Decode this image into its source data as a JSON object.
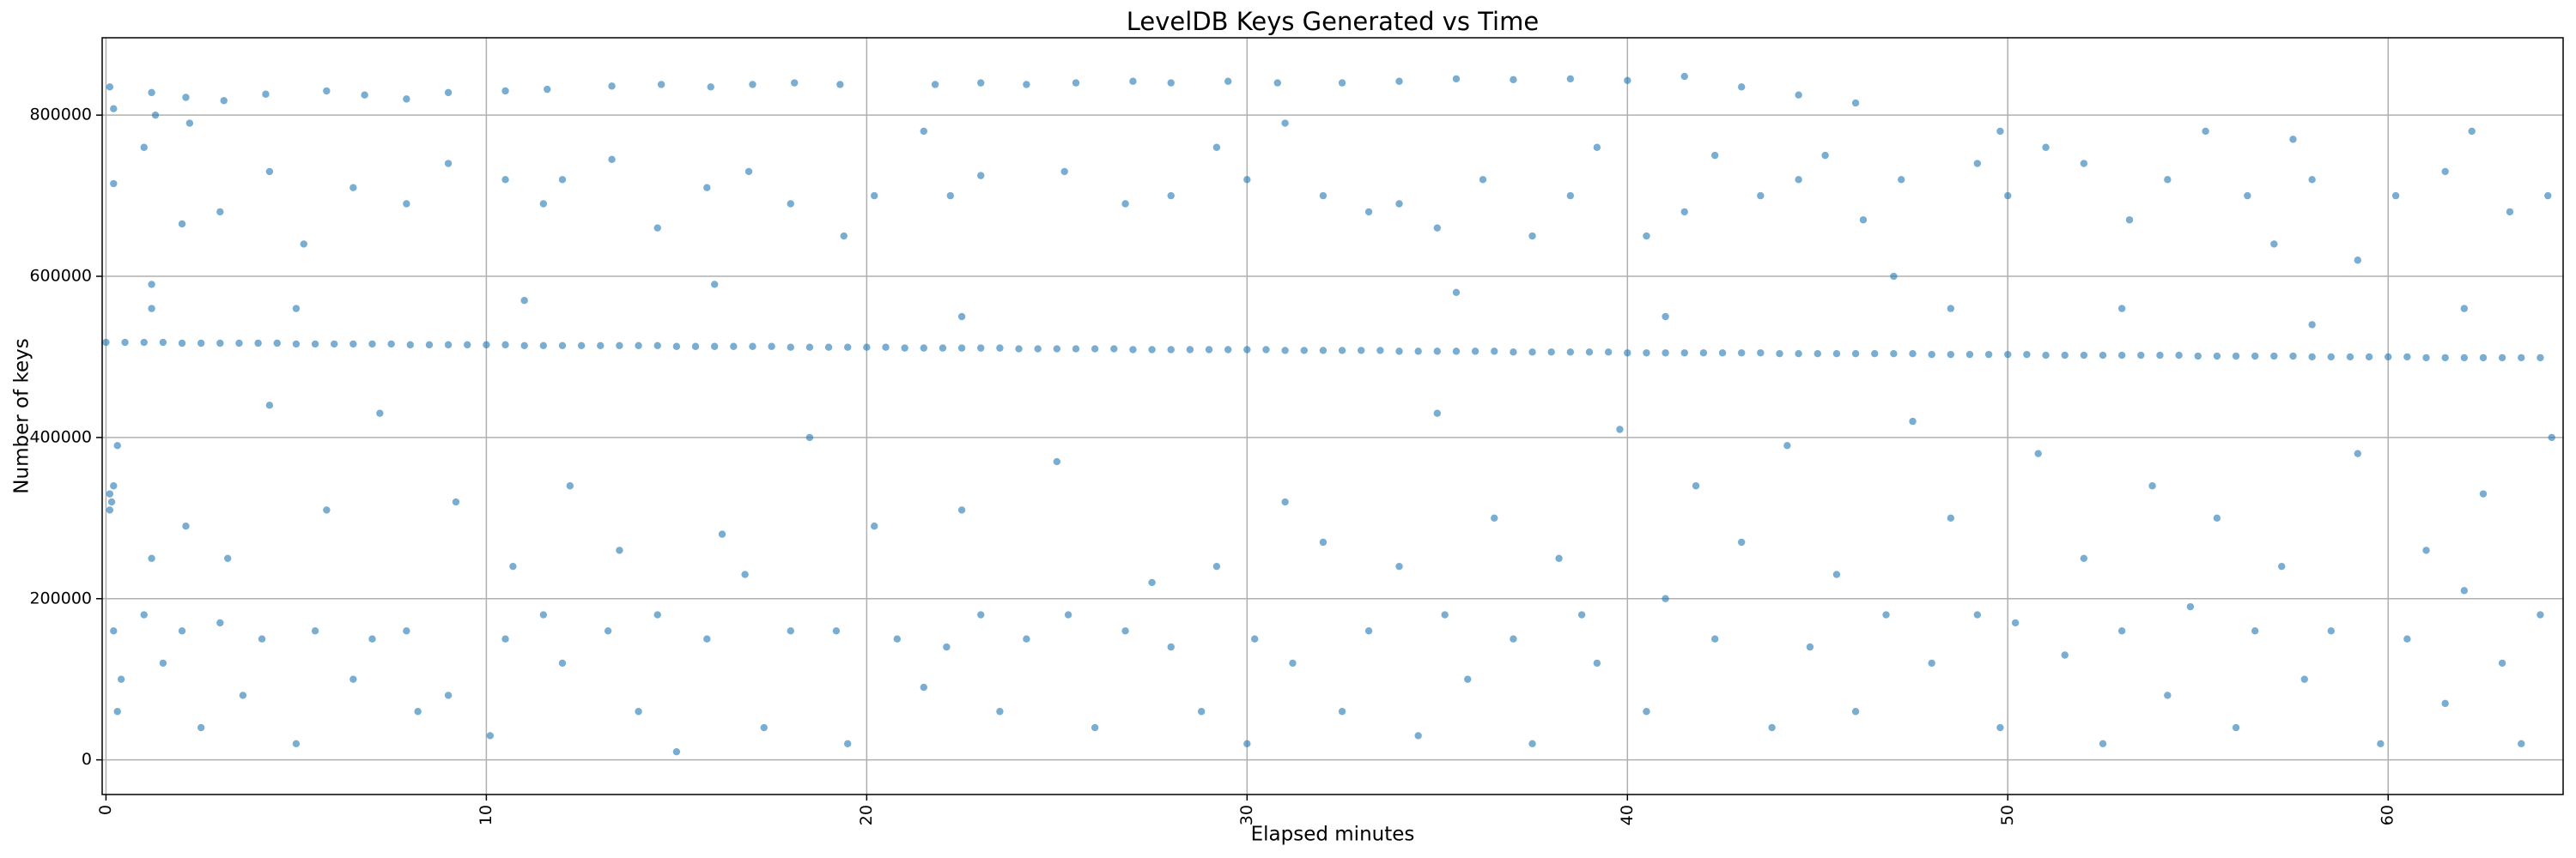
{
  "chart_data": {
    "type": "scatter",
    "title": "LevelDB Keys Generated vs Time",
    "xlabel": "Elapsed minutes",
    "ylabel": "Number of keys",
    "color": "#1f77b4",
    "grid": true,
    "xlim": [
      -0.1,
      64.6
    ],
    "ylim": [
      -43000,
      896000
    ],
    "xticks": [
      0,
      10,
      20,
      30,
      40,
      50,
      60
    ],
    "yticks": [
      0,
      200000,
      400000,
      600000,
      800000
    ],
    "x": [
      0,
      1,
      2,
      3,
      4,
      5,
      6,
      7,
      8,
      9,
      10,
      11,
      12,
      13,
      14,
      15,
      16,
      17,
      18,
      19,
      20,
      21,
      22,
      23,
      24,
      25,
      26,
      27,
      28,
      29,
      30,
      31,
      32,
      33,
      34,
      35,
      36,
      37,
      38,
      39,
      40,
      41,
      42,
      43,
      44,
      45,
      46,
      47,
      48,
      49,
      50,
      51,
      52,
      53,
      54,
      55,
      56,
      57,
      58,
      59,
      60,
      61,
      62,
      63,
      64,
      0.5,
      1.5,
      2.5,
      3.5,
      4.5,
      5.5,
      6.5,
      7.5,
      8.5,
      9.5,
      10.5,
      11.5,
      12.5,
      13.5,
      14.5,
      15.5,
      16.5,
      17.5,
      18.5,
      19.5,
      20.5,
      21.5,
      22.5,
      23.5,
      24.5,
      25.5,
      26.5,
      27.5,
      28.5,
      29.5,
      30.5,
      31.5,
      32.5,
      33.5,
      34.5,
      35.5,
      36.5,
      37.5,
      38.5,
      39.5,
      40.5,
      41.5,
      42.5,
      43.5,
      44.5,
      45.5,
      46.5,
      47.5,
      48.5,
      49.5,
      50.5,
      51.5,
      52.5,
      53.5,
      54.5,
      55.5,
      56.5,
      57.5,
      58.5,
      59.5,
      60.5,
      61.5,
      62.5,
      63.5,
      0.1,
      1.2,
      2.1,
      3.1,
      4.2,
      5.8,
      6.8,
      7.9,
      9.0,
      10.5,
      11.6,
      13.3,
      14.6,
      15.9,
      17.0,
      18.1,
      19.3,
      21.8,
      23.0,
      24.2,
      25.5,
      27.0,
      28.0,
      29.5,
      30.8,
      32.5,
      34.0,
      35.5,
      37.0,
      38.5,
      40.0,
      41.5,
      43.0,
      44.5,
      46.0,
      0.2,
      1.3,
      2.2,
      0.2,
      1.0,
      1.2,
      2.0,
      3.0,
      4.3,
      5.2,
      6.5,
      7.9,
      9.0,
      10.5,
      11.5,
      12.0,
      13.3,
      14.5,
      15.8,
      16.9,
      18.0,
      19.4,
      20.2,
      21.5,
      22.2,
      23.0,
      25.2,
      26.8,
      28.0,
      29.2,
      30.0,
      31.0,
      32.0,
      33.2,
      34.0,
      35.0,
      36.2,
      37.5,
      38.5,
      39.2,
      40.5,
      41.5,
      42.3,
      43.5,
      44.5,
      45.2,
      46.2,
      47.2,
      48.5,
      49.2,
      50.0,
      51.0,
      52.0,
      53.2,
      54.2,
      55.2,
      56.3,
      57.0,
      58.0,
      59.2,
      60.2,
      61.5,
      62.2,
      63.2,
      64.2,
      57.5,
      49.8,
      0.1,
      0.1,
      0.2,
      0.15,
      0.3,
      0.2,
      0.4,
      0.3,
      1.0,
      1.2,
      1.5,
      2.0,
      2.1,
      2.5,
      3.0,
      3.2,
      3.6,
      4.1,
      4.3,
      5.0,
      5.5,
      5.8,
      6.5,
      7.0,
      7.2,
      7.9,
      8.2,
      9.0,
      9.2,
      10.1,
      10.5,
      10.7,
      11.5,
      12.0,
      12.2,
      13.2,
      13.5,
      14.0,
      14.5,
      15.0,
      15.8,
      16.2,
      16.8,
      17.3,
      18.0,
      18.5,
      19.2,
      19.5,
      20.2,
      20.8,
      21.5,
      22.1,
      22.5,
      23.0,
      23.5,
      24.2,
      25.0,
      25.3,
      26.0,
      26.8,
      27.5,
      28.0,
      28.8,
      29.2,
      30.0,
      30.2,
      31.0,
      31.2,
      32.0,
      32.5,
      33.2,
      34.0,
      34.5,
      35.0,
      35.2,
      35.8,
      36.5,
      37.0,
      37.5,
      38.2,
      38.8,
      39.2,
      39.8,
      40.5,
      41.0,
      41.8,
      42.3,
      43.0,
      43.8,
      44.2,
      44.8,
      45.5,
      46.0,
      46.8,
      47.5,
      48.0,
      48.5,
      49.2,
      49.8,
      50.2,
      50.8,
      51.5,
      52.0,
      52.5,
      53.0,
      53.8,
      54.2,
      54.8,
      55.5,
      56.0,
      56.5,
      57.2,
      57.8,
      58.5,
      59.2,
      59.8,
      60.5,
      61.0,
      61.5,
      62.0,
      62.5,
      63.0,
      63.5,
      64.0,
      64.3,
      1.2,
      5.0,
      11.0,
      16.0,
      22.5,
      35.5,
      41.0,
      47.0,
      53.0,
      58.0,
      62.0
    ],
    "values": [
      518000,
      518000,
      517000,
      517000,
      517000,
      516000,
      516000,
      516000,
      515000,
      515000,
      515000,
      514000,
      514000,
      514000,
      514000,
      513000,
      513000,
      513000,
      512000,
      512000,
      512000,
      511000,
      511000,
      511000,
      510000,
      510000,
      510000,
      509000,
      509000,
      509000,
      509000,
      508000,
      508000,
      508000,
      507000,
      507000,
      507000,
      506000,
      506000,
      506000,
      505000,
      505000,
      505000,
      505000,
      504000,
      504000,
      504000,
      504000,
      503000,
      503000,
      503000,
      502000,
      502000,
      502000,
      502000,
      501000,
      501000,
      501000,
      500000,
      500000,
      500000,
      499000,
      499000,
      499000,
      499000,
      518000,
      518000,
      517000,
      517000,
      517000,
      516000,
      516000,
      516000,
      515000,
      515000,
      515000,
      514000,
      514000,
      514000,
      514000,
      513000,
      513000,
      513000,
      512000,
      512000,
      512000,
      511000,
      511000,
      511000,
      510000,
      510000,
      510000,
      509000,
      509000,
      509000,
      509000,
      508000,
      508000,
      508000,
      507000,
      507000,
      507000,
      506000,
      506000,
      506000,
      505000,
      505000,
      505000,
      505000,
      504000,
      504000,
      504000,
      504000,
      503000,
      503000,
      503000,
      502000,
      502000,
      502000,
      502000,
      501000,
      501000,
      501000,
      500000,
      500000,
      500000,
      499000,
      499000,
      499000,
      835000,
      828000,
      822000,
      818000,
      826000,
      830000,
      825000,
      820000,
      828000,
      830000,
      832000,
      836000,
      838000,
      835000,
      838000,
      840000,
      838000,
      838000,
      840000,
      838000,
      840000,
      842000,
      840000,
      842000,
      840000,
      840000,
      842000,
      845000,
      844000,
      845000,
      843000,
      848000,
      835000,
      825000,
      815000,
      808000,
      800000,
      790000,
      715000,
      760000,
      590000,
      665000,
      680000,
      730000,
      640000,
      710000,
      690000,
      740000,
      720000,
      690000,
      720000,
      745000,
      660000,
      710000,
      730000,
      690000,
      650000,
      700000,
      780000,
      700000,
      725000,
      730000,
      690000,
      700000,
      760000,
      720000,
      790000,
      700000,
      680000,
      690000,
      660000,
      720000,
      650000,
      700000,
      760000,
      650000,
      680000,
      750000,
      700000,
      720000,
      750000,
      670000,
      720000,
      560000,
      740000,
      700000,
      760000,
      740000,
      670000,
      720000,
      780000,
      700000,
      640000,
      720000,
      620000,
      700000,
      730000,
      780000,
      680000,
      700000,
      770000,
      780000,
      330000,
      310000,
      340000,
      320000,
      390000,
      160000,
      100000,
      60000,
      180000,
      250000,
      120000,
      160000,
      290000,
      40000,
      170000,
      250000,
      80000,
      150000,
      440000,
      20000,
      160000,
      310000,
      100000,
      150000,
      430000,
      160000,
      60000,
      80000,
      320000,
      30000,
      150000,
      240000,
      180000,
      120000,
      340000,
      160000,
      260000,
      60000,
      180000,
      10000,
      150000,
      280000,
      230000,
      40000,
      160000,
      400000,
      160000,
      20000,
      290000,
      150000,
      90000,
      140000,
      310000,
      180000,
      60000,
      150000,
      370000,
      180000,
      40000,
      160000,
      220000,
      140000,
      60000,
      240000,
      20000,
      150000,
      320000,
      120000,
      270000,
      60000,
      160000,
      240000,
      30000,
      430000,
      180000,
      100000,
      300000,
      150000,
      20000,
      250000,
      180000,
      120000,
      410000,
      60000,
      200000,
      340000,
      150000,
      270000,
      40000,
      390000,
      140000,
      230000,
      60000,
      180000,
      420000,
      120000,
      300000,
      180000,
      40000,
      170000,
      380000,
      130000,
      250000,
      20000,
      160000,
      340000,
      80000,
      190000,
      300000,
      40000,
      160000,
      240000,
      100000,
      160000,
      380000,
      20000,
      150000,
      260000,
      70000,
      210000,
      330000,
      120000,
      20000,
      180000,
      400000,
      560000,
      560000,
      570000,
      590000,
      550000,
      580000,
      550000,
      600000,
      560000,
      540000,
      560000
    ]
  }
}
